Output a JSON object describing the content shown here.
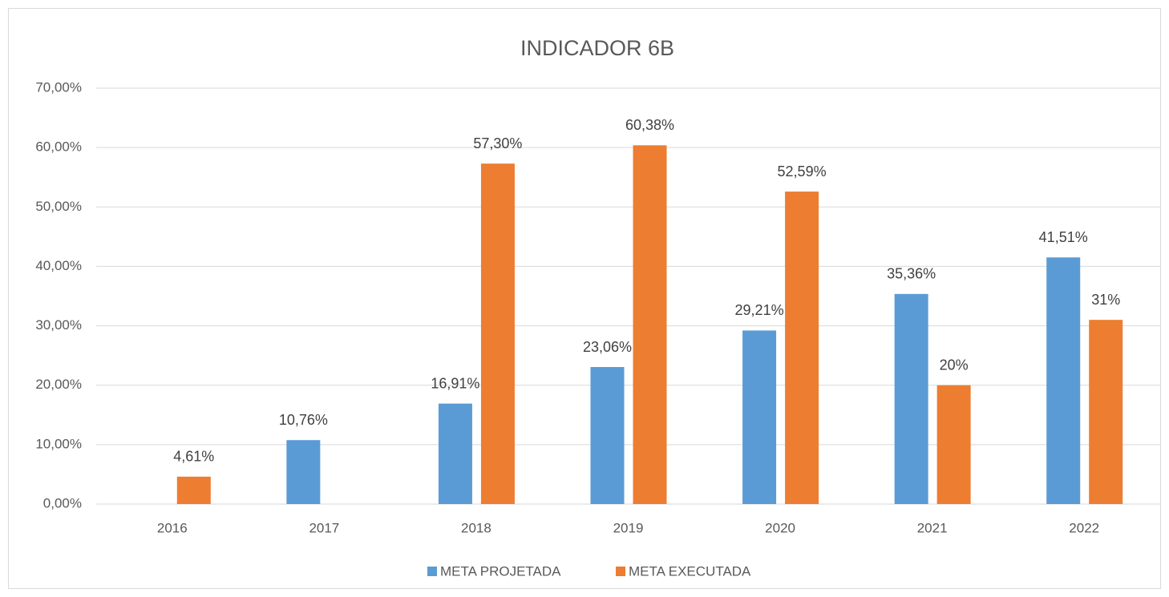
{
  "chart_data": {
    "type": "bar",
    "title": "INDICADOR 6B",
    "categories": [
      "2016",
      "2017",
      "2018",
      "2019",
      "2020",
      "2021",
      "2022"
    ],
    "series": [
      {
        "name": "META PROJETADA",
        "color": "#5b9bd5",
        "values": [
          null,
          10.76,
          16.91,
          23.06,
          29.21,
          35.36,
          41.51
        ],
        "value_labels": [
          null,
          "10,76%",
          "16,91%",
          "23,06%",
          "29,21%",
          "35,36%",
          "41,51%"
        ]
      },
      {
        "name": "META EXECUTADA",
        "color": "#ed7d31",
        "values": [
          4.61,
          null,
          57.3,
          60.38,
          52.59,
          20,
          31
        ],
        "value_labels": [
          "4,61%",
          null,
          "57,30%",
          "60,38%",
          "52,59%",
          "20%",
          "31%"
        ]
      }
    ],
    "ylim": [
      0,
      70
    ],
    "yticks": [
      {
        "value": 0,
        "label": "0,00%"
      },
      {
        "value": 10,
        "label": "10,00%"
      },
      {
        "value": 20,
        "label": "20,00%"
      },
      {
        "value": 30,
        "label": "30,00%"
      },
      {
        "value": 40,
        "label": "40,00%"
      },
      {
        "value": 50,
        "label": "50,00%"
      },
      {
        "value": 60,
        "label": "60,00%"
      },
      {
        "value": 70,
        "label": "70,00%"
      }
    ],
    "grid": true,
    "legend": "bottom"
  }
}
